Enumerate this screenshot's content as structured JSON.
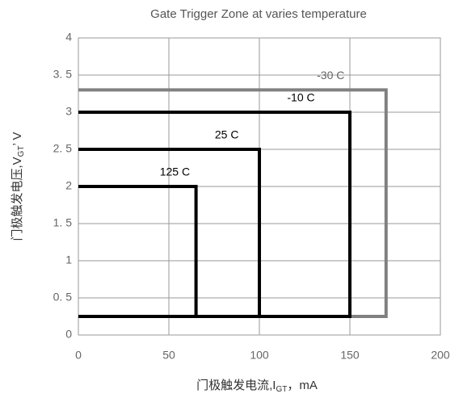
{
  "chart_data": {
    "type": "zone",
    "title": "Gate Trigger Zone at varies temperature",
    "x_label": {
      "prefix": "门极触发电流,I",
      "sub": "GT",
      "suffix": "，mA"
    },
    "y_label": {
      "prefix": "门极触发电压,V",
      "sub": "GT",
      "suffix": "’ V"
    },
    "xlim": [
      0,
      200
    ],
    "xticks": [
      0,
      50,
      100,
      150,
      200
    ],
    "ylim": [
      0,
      4
    ],
    "yticks": [
      0,
      {
        "value": 0.5,
        "label": "0. 5"
      },
      1,
      {
        "value": 1.5,
        "label": "1. 5"
      },
      2,
      {
        "value": 2.5,
        "label": "2. 5"
      },
      3,
      {
        "value": 3.5,
        "label": "3. 5"
      },
      4
    ],
    "grid": true,
    "series": [
      {
        "name": "-30 C",
        "color": "#808080",
        "x": [
          0,
          170
        ],
        "y": [
          0.25,
          3.3
        ]
      },
      {
        "name": "-10 C",
        "color": "#000000",
        "x": [
          0,
          150
        ],
        "y": [
          0.25,
          3.0
        ]
      },
      {
        "name": "25 C",
        "color": "#000000",
        "x": [
          0,
          100
        ],
        "y": [
          0.25,
          2.5
        ]
      },
      {
        "name": "125 C",
        "color": "#000000",
        "x": [
          0,
          65
        ],
        "y": [
          0.25,
          2.0
        ]
      }
    ]
  }
}
